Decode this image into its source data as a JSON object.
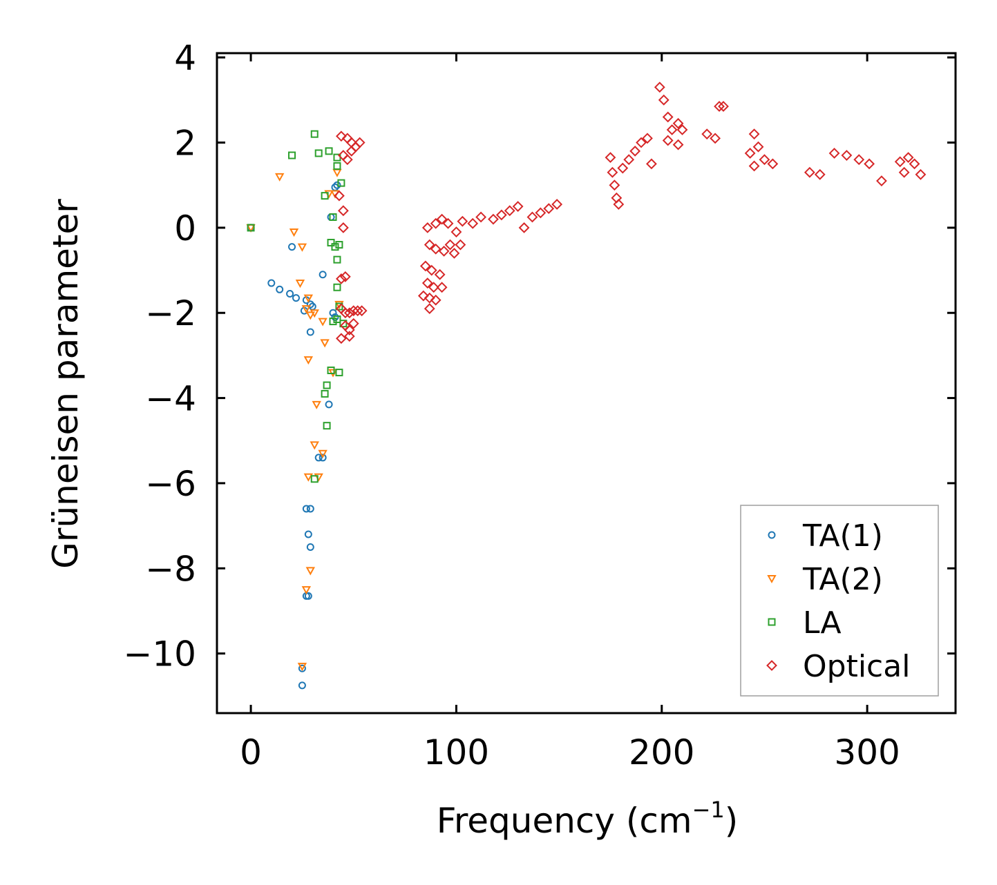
{
  "chart_data": {
    "type": "scatter",
    "xlabel": "Frequency (cm",
    "xlabel_sup": "−1",
    "xlabel_end": ")",
    "ylabel": "Grüneisen parameter",
    "xlim": [
      -16.5,
      343
    ],
    "ylim": [
      -11.4,
      4.1
    ],
    "xticks": [
      0,
      100,
      200,
      300
    ],
    "xtick_labels": [
      "0",
      "100",
      "200",
      "300"
    ],
    "yticks": [
      4,
      2,
      0,
      -2,
      -4,
      -6,
      -8,
      -10
    ],
    "ytick_labels": [
      "4",
      "2",
      "0",
      "−2",
      "−4",
      "−6",
      "−8",
      "−10"
    ],
    "legend_position": "lower-right",
    "series": [
      {
        "name": "TA(1)",
        "marker": "circle",
        "color": "#1f77b4",
        "points": [
          [
            0,
            0
          ],
          [
            10,
            -1.3
          ],
          [
            14,
            -1.45
          ],
          [
            19,
            -1.55
          ],
          [
            22,
            -1.65
          ],
          [
            26,
            -1.95
          ],
          [
            27,
            -1.7
          ],
          [
            29,
            -1.8
          ],
          [
            30,
            -1.85
          ],
          [
            20,
            -0.45
          ],
          [
            35,
            -1.1
          ],
          [
            29,
            -2.45
          ],
          [
            39,
            0.25
          ],
          [
            41,
            0.95
          ],
          [
            42,
            1.0
          ],
          [
            40,
            -2.0
          ],
          [
            41,
            -2.1
          ],
          [
            38,
            -4.15
          ],
          [
            33,
            -5.4
          ],
          [
            35,
            -5.4
          ],
          [
            27,
            -6.6
          ],
          [
            29,
            -6.6
          ],
          [
            28,
            -7.2
          ],
          [
            29,
            -7.5
          ],
          [
            27,
            -8.65
          ],
          [
            28,
            -8.65
          ],
          [
            25,
            -10.35
          ],
          [
            25,
            -10.75
          ]
        ]
      },
      {
        "name": "TA(2)",
        "marker": "triangle",
        "color": "#ff7f0e",
        "points": [
          [
            0,
            0
          ],
          [
            14,
            1.2
          ],
          [
            21,
            -0.1
          ],
          [
            25,
            -0.45
          ],
          [
            24,
            -1.3
          ],
          [
            28,
            -1.65
          ],
          [
            27,
            -1.9
          ],
          [
            29,
            -2.05
          ],
          [
            31,
            -2.0
          ],
          [
            35,
            -2.2
          ],
          [
            36,
            -2.7
          ],
          [
            28,
            -3.1
          ],
          [
            32,
            -4.15
          ],
          [
            31,
            -5.1
          ],
          [
            35,
            -5.3
          ],
          [
            28,
            -5.85
          ],
          [
            33,
            -5.85
          ],
          [
            29,
            -8.05
          ],
          [
            27,
            -8.5
          ],
          [
            25,
            -10.3
          ],
          [
            38,
            0.8
          ],
          [
            41,
            0.8
          ],
          [
            42,
            1.3
          ],
          [
            40,
            -3.4
          ],
          [
            43,
            -1.8
          ]
        ]
      },
      {
        "name": "LA",
        "marker": "square",
        "color": "#2ca02c",
        "points": [
          [
            0,
            0
          ],
          [
            20,
            1.7
          ],
          [
            31,
            2.2
          ],
          [
            33,
            1.75
          ],
          [
            38,
            1.8
          ],
          [
            42,
            1.65
          ],
          [
            42,
            1.45
          ],
          [
            44,
            1.05
          ],
          [
            36,
            0.75
          ],
          [
            40,
            0.25
          ],
          [
            39,
            -0.35
          ],
          [
            41,
            -0.45
          ],
          [
            43,
            -0.4
          ],
          [
            42,
            -0.75
          ],
          [
            42,
            -1.4
          ],
          [
            43,
            -1.85
          ],
          [
            40,
            -2.2
          ],
          [
            42,
            -2.15
          ],
          [
            45,
            -2.25
          ],
          [
            39,
            -3.35
          ],
          [
            43,
            -3.4
          ],
          [
            37,
            -3.7
          ],
          [
            36,
            -3.9
          ],
          [
            37,
            -4.65
          ],
          [
            31,
            -5.9
          ]
        ]
      },
      {
        "name": "Optical",
        "marker": "diamond",
        "color": "#d62728",
        "points": [
          [
            44,
            2.15
          ],
          [
            47,
            2.1
          ],
          [
            49,
            2.0
          ],
          [
            51,
            1.9
          ],
          [
            53,
            2.0
          ],
          [
            45,
            1.7
          ],
          [
            47,
            1.6
          ],
          [
            49,
            1.8
          ],
          [
            43,
            0.75
          ],
          [
            45,
            0.4
          ],
          [
            45,
            0.0
          ],
          [
            44,
            -1.2
          ],
          [
            46,
            -1.15
          ],
          [
            44,
            -1.9
          ],
          [
            46,
            -2.0
          ],
          [
            48,
            -2.0
          ],
          [
            50,
            -1.95
          ],
          [
            52,
            -1.95
          ],
          [
            54,
            -1.95
          ],
          [
            46,
            -2.3
          ],
          [
            48,
            -2.4
          ],
          [
            50,
            -2.25
          ],
          [
            44,
            -2.6
          ],
          [
            48,
            -2.55
          ],
          [
            86,
            0.0
          ],
          [
            90,
            0.1
          ],
          [
            93,
            0.2
          ],
          [
            96,
            0.1
          ],
          [
            87,
            -0.4
          ],
          [
            90,
            -0.5
          ],
          [
            94,
            -0.55
          ],
          [
            97,
            -0.4
          ],
          [
            85,
            -0.9
          ],
          [
            88,
            -1.0
          ],
          [
            92,
            -1.1
          ],
          [
            86,
            -1.3
          ],
          [
            89,
            -1.4
          ],
          [
            93,
            -1.4
          ],
          [
            84,
            -1.6
          ],
          [
            87,
            -1.65
          ],
          [
            90,
            -1.7
          ],
          [
            87,
            -1.9
          ],
          [
            99,
            -0.6
          ],
          [
            102,
            -0.4
          ],
          [
            100,
            -0.1
          ],
          [
            103,
            0.15
          ],
          [
            108,
            0.1
          ],
          [
            112,
            0.25
          ],
          [
            118,
            0.2
          ],
          [
            122,
            0.3
          ],
          [
            126,
            0.4
          ],
          [
            130,
            0.5
          ],
          [
            133,
            0.0
          ],
          [
            137,
            0.25
          ],
          [
            141,
            0.35
          ],
          [
            145,
            0.45
          ],
          [
            149,
            0.55
          ],
          [
            175,
            1.65
          ],
          [
            176,
            1.3
          ],
          [
            177,
            1.0
          ],
          [
            178,
            0.7
          ],
          [
            179,
            0.55
          ],
          [
            181,
            1.4
          ],
          [
            184,
            1.6
          ],
          [
            187,
            1.8
          ],
          [
            190,
            2.0
          ],
          [
            193,
            2.1
          ],
          [
            195,
            1.5
          ],
          [
            199,
            3.3
          ],
          [
            201,
            3.0
          ],
          [
            203,
            2.6
          ],
          [
            205,
            2.3
          ],
          [
            208,
            2.45
          ],
          [
            210,
            2.3
          ],
          [
            203,
            2.05
          ],
          [
            208,
            1.95
          ],
          [
            222,
            2.2
          ],
          [
            226,
            2.1
          ],
          [
            228,
            2.85
          ],
          [
            230,
            2.85
          ],
          [
            243,
            1.75
          ],
          [
            245,
            2.2
          ],
          [
            247,
            1.9
          ],
          [
            250,
            1.6
          ],
          [
            254,
            1.5
          ],
          [
            245,
            1.45
          ],
          [
            272,
            1.3
          ],
          [
            277,
            1.25
          ],
          [
            284,
            1.75
          ],
          [
            290,
            1.7
          ],
          [
            296,
            1.6
          ],
          [
            301,
            1.5
          ],
          [
            307,
            1.1
          ],
          [
            316,
            1.55
          ],
          [
            320,
            1.65
          ],
          [
            323,
            1.5
          ],
          [
            326,
            1.25
          ],
          [
            318,
            1.3
          ]
        ]
      }
    ]
  }
}
